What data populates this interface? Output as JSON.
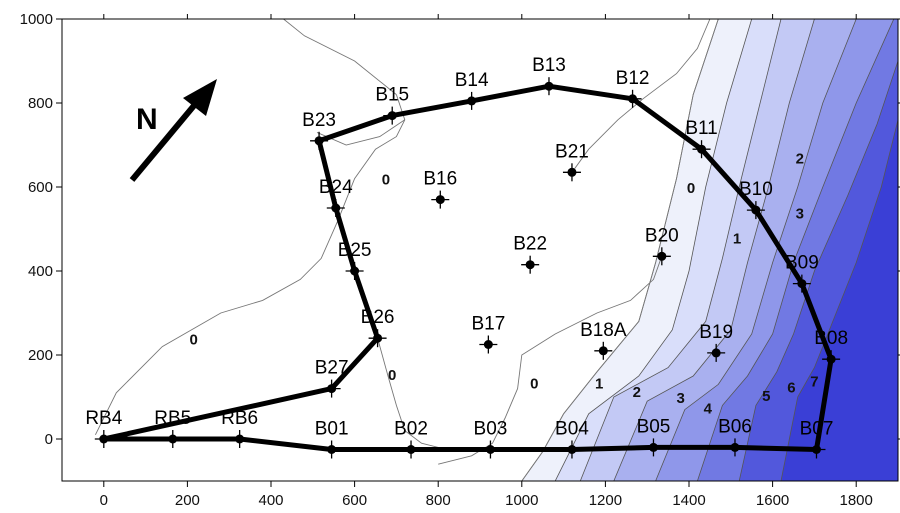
{
  "chart_data": {
    "type": "contour",
    "xlim": [
      -100,
      1900
    ],
    "ylim": [
      -100,
      1000
    ],
    "x_ticks": [
      0,
      200,
      400,
      600,
      800,
      1000,
      1200,
      1400,
      1600,
      1800
    ],
    "y_ticks": [
      0,
      200,
      400,
      600,
      800,
      1000
    ],
    "north_label": "N",
    "fill_colors": [
      "#eef1fb",
      "#d9defa",
      "#c3c9f5",
      "#a9b0ef",
      "#8f97ea",
      "#7179e3",
      "#5258dc",
      "#3a3fd6"
    ],
    "boreholes": [
      {
        "id": "RB4",
        "x": 0,
        "y": 0
      },
      {
        "id": "RB5",
        "x": 165,
        "y": 0
      },
      {
        "id": "RB6",
        "x": 325,
        "y": 0
      },
      {
        "id": "B01",
        "x": 545,
        "y": -25
      },
      {
        "id": "B02",
        "x": 735,
        "y": -25
      },
      {
        "id": "B03",
        "x": 925,
        "y": -25
      },
      {
        "id": "B04",
        "x": 1120,
        "y": -25
      },
      {
        "id": "B05",
        "x": 1315,
        "y": -20
      },
      {
        "id": "B06",
        "x": 1510,
        "y": -20
      },
      {
        "id": "B07",
        "x": 1705,
        "y": -25
      },
      {
        "id": "B08",
        "x": 1740,
        "y": 190
      },
      {
        "id": "B09",
        "x": 1670,
        "y": 370
      },
      {
        "id": "B10",
        "x": 1560,
        "y": 545
      },
      {
        "id": "B11",
        "x": 1430,
        "y": 690
      },
      {
        "id": "B12",
        "x": 1265,
        "y": 810
      },
      {
        "id": "B13",
        "x": 1065,
        "y": 840
      },
      {
        "id": "B14",
        "x": 880,
        "y": 805
      },
      {
        "id": "B15",
        "x": 690,
        "y": 770
      },
      {
        "id": "B23",
        "x": 515,
        "y": 710
      },
      {
        "id": "B24",
        "x": 555,
        "y": 550
      },
      {
        "id": "B25",
        "x": 600,
        "y": 400
      },
      {
        "id": "B26",
        "x": 655,
        "y": 240
      },
      {
        "id": "B27",
        "x": 545,
        "y": 120
      },
      {
        "id": "B16",
        "x": 805,
        "y": 570
      },
      {
        "id": "B21",
        "x": 1120,
        "y": 635
      },
      {
        "id": "B22",
        "x": 1020,
        "y": 415
      },
      {
        "id": "B20",
        "x": 1335,
        "y": 435
      },
      {
        "id": "B17",
        "x": 920,
        "y": 225
      },
      {
        "id": "B18A",
        "x": 1195,
        "y": 210
      },
      {
        "id": "B19",
        "x": 1465,
        "y": 205
      }
    ],
    "boundary_order": [
      "RB4",
      "RB5",
      "RB6",
      "B01",
      "B02",
      "B03",
      "B04",
      "B05",
      "B06",
      "B07",
      "B08",
      "B09",
      "B10",
      "B11",
      "B12",
      "B13",
      "B14",
      "B15",
      "B23",
      "B24",
      "B25",
      "B26",
      "B27",
      "RB4"
    ],
    "contour_labels": [
      {
        "text": "0",
        "x": 675,
        "y": 615
      },
      {
        "text": "0",
        "x": 215,
        "y": 235
      },
      {
        "text": "0",
        "x": 690,
        "y": 150
      },
      {
        "text": "0",
        "x": 1030,
        "y": 130
      },
      {
        "text": "0",
        "x": 1405,
        "y": 595
      },
      {
        "text": "1",
        "x": 1515,
        "y": 475
      },
      {
        "text": "1",
        "x": 1185,
        "y": 130
      },
      {
        "text": "2",
        "x": 1665,
        "y": 665
      },
      {
        "text": "2",
        "x": 1275,
        "y": 110
      },
      {
        "text": "3",
        "x": 1665,
        "y": 535
      },
      {
        "text": "3",
        "x": 1380,
        "y": 95
      },
      {
        "text": "4",
        "x": 1445,
        "y": 70
      },
      {
        "text": "5",
        "x": 1585,
        "y": 100
      },
      {
        "text": "6",
        "x": 1645,
        "y": 120
      },
      {
        "text": "7",
        "x": 1700,
        "y": 135
      }
    ],
    "contour_bands": [
      {
        "level": 0,
        "points": [
          [
            1470,
            1000
          ],
          [
            1410,
            820
          ],
          [
            1370,
            620
          ],
          [
            1320,
            420
          ],
          [
            1280,
            280
          ],
          [
            1180,
            160
          ],
          [
            1100,
            60
          ],
          [
            1050,
            -30
          ],
          [
            1000,
            -100
          ],
          [
            1900,
            -100
          ],
          [
            1900,
            1000
          ]
        ]
      },
      {
        "level": 1,
        "points": [
          [
            1550,
            1000
          ],
          [
            1490,
            800
          ],
          [
            1440,
            600
          ],
          [
            1400,
            400
          ],
          [
            1360,
            260
          ],
          [
            1280,
            150
          ],
          [
            1160,
            60
          ],
          [
            1080,
            -100
          ],
          [
            1900,
            -100
          ],
          [
            1900,
            1000
          ]
        ]
      },
      {
        "level": 2,
        "points": [
          [
            1620,
            1000
          ],
          [
            1570,
            800
          ],
          [
            1520,
            600
          ],
          [
            1480,
            430
          ],
          [
            1440,
            280
          ],
          [
            1350,
            170
          ],
          [
            1220,
            100
          ],
          [
            1140,
            -100
          ],
          [
            1900,
            -100
          ],
          [
            1900,
            1000
          ]
        ]
      },
      {
        "level": 3,
        "points": [
          [
            1700,
            1000
          ],
          [
            1640,
            800
          ],
          [
            1590,
            600
          ],
          [
            1540,
            420
          ],
          [
            1500,
            260
          ],
          [
            1410,
            150
          ],
          [
            1300,
            90
          ],
          [
            1220,
            -100
          ],
          [
            1900,
            -100
          ],
          [
            1900,
            1000
          ]
        ]
      },
      {
        "level": 4,
        "points": [
          [
            1800,
            1000
          ],
          [
            1720,
            800
          ],
          [
            1660,
            600
          ],
          [
            1600,
            420
          ],
          [
            1550,
            250
          ],
          [
            1470,
            130
          ],
          [
            1390,
            70
          ],
          [
            1320,
            -100
          ],
          [
            1900,
            -100
          ],
          [
            1900,
            1000
          ]
        ]
      },
      {
        "level": 5,
        "points": [
          [
            1890,
            1000
          ],
          [
            1800,
            800
          ],
          [
            1720,
            600
          ],
          [
            1650,
            420
          ],
          [
            1600,
            250
          ],
          [
            1540,
            150
          ],
          [
            1480,
            80
          ],
          [
            1420,
            -100
          ],
          [
            1900,
            -100
          ],
          [
            1900,
            1000
          ]
        ]
      },
      {
        "level": 6,
        "points": [
          [
            1900,
            900
          ],
          [
            1850,
            750
          ],
          [
            1780,
            580
          ],
          [
            1700,
            400
          ],
          [
            1650,
            250
          ],
          [
            1610,
            160
          ],
          [
            1560,
            80
          ],
          [
            1520,
            -100
          ],
          [
            1900,
            -100
          ]
        ]
      },
      {
        "level": 7,
        "points": [
          [
            1900,
            760
          ],
          [
            1860,
            600
          ],
          [
            1800,
            420
          ],
          [
            1740,
            270
          ],
          [
            1700,
            170
          ],
          [
            1660,
            100
          ],
          [
            1620,
            -100
          ],
          [
            1900,
            -100
          ]
        ]
      }
    ],
    "contour_lines": [
      [
        [
          1470,
          1000
        ],
        [
          1410,
          820
        ],
        [
          1370,
          620
        ],
        [
          1320,
          420
        ],
        [
          1280,
          280
        ],
        [
          1180,
          160
        ],
        [
          1100,
          60
        ],
        [
          1050,
          -30
        ],
        [
          1000,
          -100
        ]
      ],
      [
        [
          -20,
          10
        ],
        [
          30,
          110
        ],
        [
          140,
          220
        ],
        [
          280,
          300
        ],
        [
          380,
          330
        ],
        [
          470,
          380
        ],
        [
          520,
          430
        ],
        [
          560,
          520
        ],
        [
          600,
          620
        ],
        [
          650,
          690
        ],
        [
          700,
          720
        ],
        [
          720,
          760
        ],
        [
          700,
          820
        ]
      ],
      [
        [
          510,
          730
        ],
        [
          580,
          700
        ],
        [
          660,
          720
        ],
        [
          720,
          760
        ]
      ],
      [
        [
          700,
          820
        ],
        [
          600,
          900
        ],
        [
          480,
          960
        ],
        [
          430,
          1000
        ]
      ],
      [
        [
          655,
          240
        ],
        [
          680,
          150
        ],
        [
          700,
          80
        ],
        [
          720,
          20
        ],
        [
          760,
          -10
        ],
        [
          820,
          -25
        ]
      ],
      [
        [
          1335,
          435
        ],
        [
          1315,
          380
        ],
        [
          1260,
          330
        ],
        [
          1180,
          300
        ],
        [
          1080,
          250
        ],
        [
          1000,
          200
        ],
        [
          990,
          120
        ],
        [
          960,
          50
        ],
        [
          930,
          -10
        ],
        [
          880,
          -40
        ],
        [
          800,
          -60
        ]
      ],
      [
        [
          1120,
          635
        ],
        [
          1160,
          690
        ],
        [
          1230,
          760
        ],
        [
          1290,
          810
        ],
        [
          1370,
          870
        ],
        [
          1420,
          930
        ],
        [
          1450,
          1000
        ]
      ]
    ]
  }
}
